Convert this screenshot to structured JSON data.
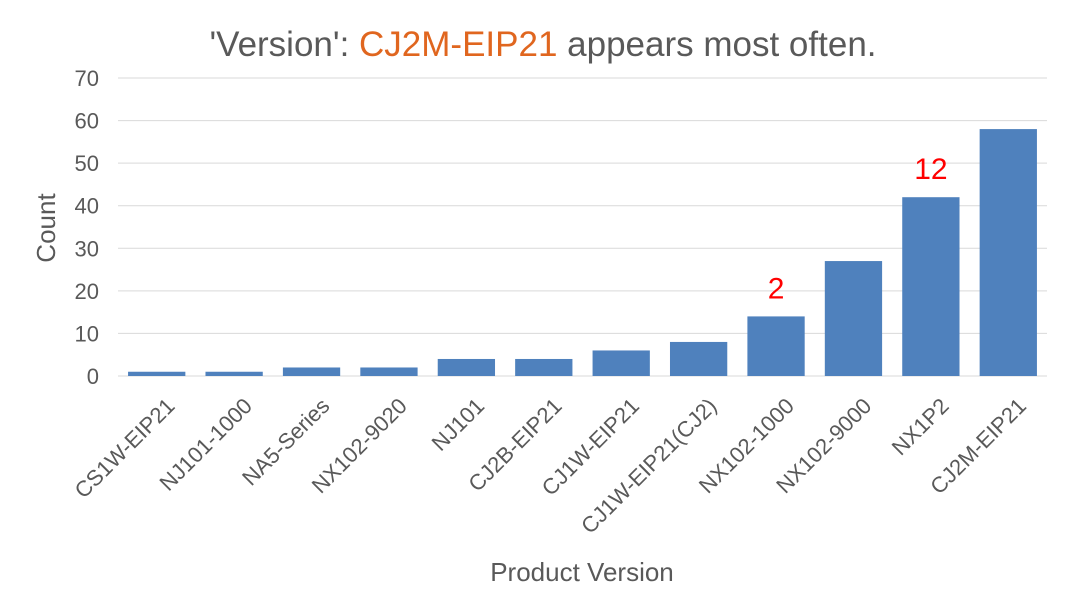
{
  "chart_data": {
    "type": "bar",
    "title_prefix": "'Version': ",
    "title_highlight": "CJ2M-EIP21",
    "title_suffix": " appears most often.",
    "xlabel": "Product Version",
    "ylabel": "Count",
    "ylim": [
      0,
      70
    ],
    "yticks": [
      0,
      10,
      20,
      30,
      40,
      50,
      60,
      70
    ],
    "grid": true,
    "categories": [
      "CS1W-EIP21",
      "NJ101-1000",
      "NA5-Series",
      "NX102-9020",
      "NJ101",
      "CJ2B-EIP21",
      "CJ1W-EIP21",
      "CJ1W-EIP21(CJ2)",
      "NX102-1000",
      "NX102-9000",
      "NX1P2",
      "CJ2M-EIP21"
    ],
    "values": [
      1,
      1,
      2,
      2,
      4,
      4,
      6,
      8,
      14,
      27,
      42,
      58
    ],
    "annotations": [
      {
        "category": "NX102-1000",
        "text": "2"
      },
      {
        "category": "NX1P2",
        "text": "12"
      }
    ],
    "colors": {
      "bar": "#4f81bd",
      "highlight": "#e0661f",
      "annotation": "#ff0000"
    }
  }
}
